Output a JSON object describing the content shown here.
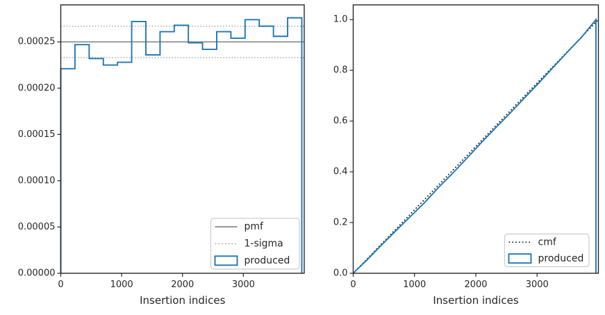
{
  "style": {
    "background": "#ffffff",
    "blue": "#1f77b4",
    "pmf_gray": "#808080",
    "sigma_gray": "#a8a8a8",
    "cmf_black": "#1c1c1c",
    "spine": "#262626",
    "text": "#262626",
    "legend_border": "#cccccc"
  },
  "chart_data": [
    {
      "type": "step-histogram",
      "title": "",
      "xlabel": "Insertion indices",
      "ylabel": "",
      "xlim": [
        0,
        4000
      ],
      "ylim": [
        0,
        0.00029
      ],
      "xticks": [
        0,
        1000,
        2000,
        3000
      ],
      "xtick_labels": [
        "0",
        "1000",
        "2000",
        "3000"
      ],
      "yticks": [
        0,
        5e-05,
        0.0001,
        0.00015,
        0.0002,
        0.00025
      ],
      "ytick_labels": [
        "0.00000",
        "0.00005",
        "0.00010",
        "0.00015",
        "0.00020",
        "0.00025"
      ],
      "grid": false,
      "pmf_value": 0.00025,
      "sigma_upper": 0.000267,
      "sigma_lower": 0.000233,
      "bin_edges": [
        0,
        233,
        466,
        699,
        932,
        1165,
        1398,
        1631,
        1864,
        2096,
        2329,
        2562,
        2795,
        3028,
        3261,
        3494,
        3727,
        3960
      ],
      "bin_values": [
        0.000221,
        0.000247,
        0.000232,
        0.000225,
        0.000228,
        0.000272,
        0.000236,
        0.000261,
        0.000268,
        0.000249,
        0.000242,
        0.000261,
        0.000254,
        0.000274,
        0.000267,
        0.000256,
        0.000276
      ],
      "legend": {
        "position": "lower right",
        "items": [
          {
            "label": "pmf",
            "marker": "line-solid-gray"
          },
          {
            "label": "1-sigma",
            "marker": "line-dotted-gray"
          },
          {
            "label": "produced",
            "marker": "rect-blue"
          }
        ]
      }
    },
    {
      "type": "line",
      "title": "",
      "xlabel": "Insertion indices",
      "ylabel": "",
      "xlim": [
        0,
        4000
      ],
      "ylim": [
        0,
        1.058
      ],
      "xticks": [
        0,
        1000,
        2000,
        3000
      ],
      "xtick_labels": [
        "0",
        "1000",
        "2000",
        "3000"
      ],
      "yticks": [
        0,
        0.2,
        0.4,
        0.6,
        0.8,
        1.0
      ],
      "ytick_labels": [
        "0.0",
        "0.2",
        "0.4",
        "0.6",
        "0.8",
        "1.0"
      ],
      "grid": false,
      "series": [
        {
          "name": "cmf",
          "style": "dotted-black",
          "x": [
            0,
            4000
          ],
          "y": [
            0,
            1.0
          ]
        },
        {
          "name": "produced",
          "style": "solid-blue",
          "closes_to_zero_at_last_x": true,
          "x": [
            0,
            233,
            466,
            699,
            932,
            1165,
            1398,
            1631,
            1864,
            2096,
            2329,
            2562,
            2795,
            3028,
            3261,
            3494,
            3727,
            3960
          ],
          "y": [
            0,
            0.0546,
            0.1124,
            0.1684,
            0.2234,
            0.2788,
            0.3399,
            0.3964,
            0.456,
            0.5164,
            0.5745,
            0.6318,
            0.6914,
            0.7502,
            0.8115,
            0.8719,
            0.9309,
            1.0
          ]
        }
      ],
      "legend": {
        "position": "lower right",
        "items": [
          {
            "label": "cmf",
            "marker": "line-dotted-black"
          },
          {
            "label": "produced",
            "marker": "rect-blue"
          }
        ]
      }
    }
  ]
}
